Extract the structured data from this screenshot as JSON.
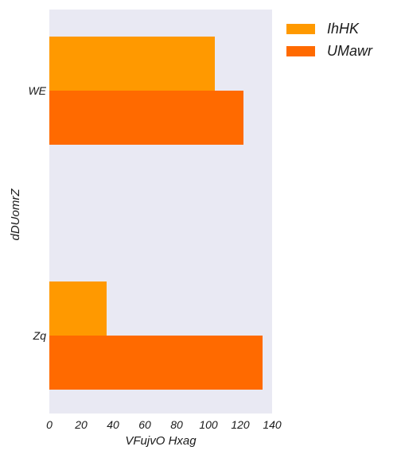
{
  "chart_data": {
    "type": "bar",
    "orientation": "horizontal",
    "categories": [
      "WE",
      "Zq"
    ],
    "series": [
      {
        "name": "IhHK",
        "values": [
          104,
          36
        ],
        "color": "#ff9900"
      },
      {
        "name": "UMawr",
        "values": [
          122,
          134
        ],
        "color": "#ff6a00"
      }
    ],
    "xlabel": "VFujvO Hxag",
    "ylabel": "dDUomrZ",
    "xlim": [
      0,
      140
    ],
    "xticks": [
      "0",
      "20",
      "40",
      "60",
      "80",
      "100",
      "120",
      "140"
    ],
    "grid": false,
    "background_color": "#e9e9f3",
    "legend_position": "top-right, outside plot"
  }
}
